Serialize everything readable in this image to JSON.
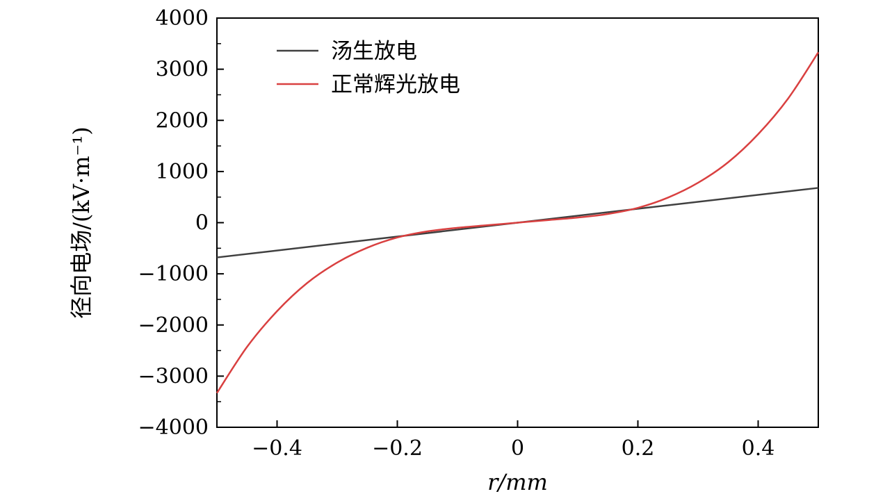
{
  "chart_data": {
    "type": "line",
    "xlabel": "r/mm",
    "ylabel": "径向电场/(kV·m⁻¹)",
    "xlim": [
      -0.5,
      0.5
    ],
    "ylim": [
      -4000,
      4000
    ],
    "x_ticks": [
      -0.4,
      -0.2,
      0,
      0.2,
      0.4
    ],
    "x_tick_labels": [
      "−0.4",
      "−0.2",
      "0",
      "0.2",
      "0.4"
    ],
    "y_ticks": [
      -4000,
      -3000,
      -2000,
      -1000,
      0,
      1000,
      2000,
      3000,
      4000
    ],
    "y_tick_labels": [
      "−4000",
      "−3000",
      "−2000",
      "−1000",
      "0",
      "1000",
      "2000",
      "3000",
      "4000"
    ],
    "grid": false,
    "legend_position": "top-left",
    "series": [
      {
        "name": "汤生放电",
        "color": "#404040",
        "x": [
          -0.5,
          0.5
        ],
        "y": [
          -680,
          680
        ]
      },
      {
        "name": "正常辉光放电",
        "color": "#d94040",
        "x": [
          -0.5,
          -0.45,
          -0.4,
          -0.35,
          -0.3,
          -0.25,
          -0.2,
          -0.15,
          -0.1,
          -0.05,
          0,
          0.05,
          0.1,
          0.15,
          0.2,
          0.25,
          0.3,
          0.35,
          0.4,
          0.45,
          0.5
        ],
        "y": [
          -3330,
          -2430,
          -1730,
          -1180,
          -780,
          -490,
          -290,
          -170,
          -100,
          -50,
          0,
          50,
          100,
          170,
          290,
          490,
          780,
          1180,
          1730,
          2430,
          3330
        ]
      }
    ]
  }
}
